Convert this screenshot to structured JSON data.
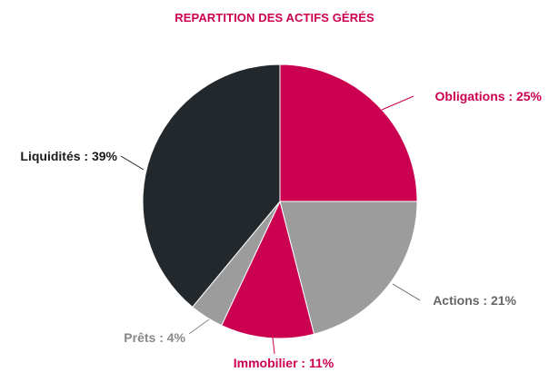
{
  "chart_data": {
    "type": "pie",
    "title": "REPARTITION DES ACTIFS GÉRÉS",
    "slices": [
      {
        "label": "Obligations : 25%",
        "value": 25,
        "color": "#cc0051"
      },
      {
        "label": "Actions : 21%",
        "value": 21,
        "color": "#9c9c9c"
      },
      {
        "label": "Immobilier : 11%",
        "value": 11,
        "color": "#cc0051"
      },
      {
        "label": "Prêts : 4%",
        "value": 4,
        "color": "#9c9c9c"
      },
      {
        "label": "Liquidités : 39%",
        "value": 39,
        "color": "#22282b"
      }
    ],
    "label_colors": [
      "#cc0051",
      "#666666",
      "#cc0051",
      "#888888",
      "#1b1b1b"
    ]
  }
}
